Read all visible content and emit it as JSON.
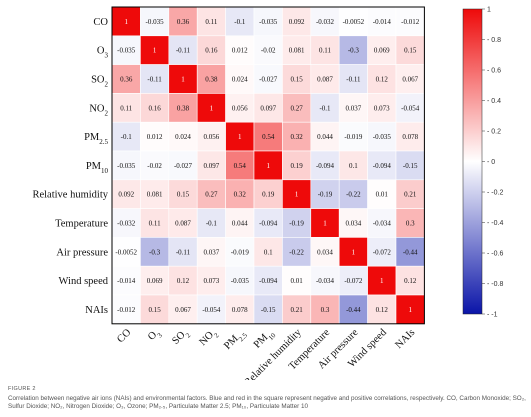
{
  "chart_data": {
    "type": "heatmap",
    "variables": [
      "CO",
      "O3",
      "SO2",
      "NO2",
      "PM2.5",
      "PM10",
      "Relative humidity",
      "Temperature",
      "Air pressure",
      "Wind speed",
      "NAIs"
    ],
    "labels": [
      {
        "base": "CO",
        "sub": ""
      },
      {
        "base": "O",
        "sub": "3"
      },
      {
        "base": "SO",
        "sub": "2"
      },
      {
        "base": "NO",
        "sub": "2"
      },
      {
        "base": "PM",
        "sub": "2.5"
      },
      {
        "base": "PM",
        "sub": "10"
      },
      {
        "base": "Relative humidity",
        "sub": ""
      },
      {
        "base": "Temperature",
        "sub": ""
      },
      {
        "base": "Air pressure",
        "sub": ""
      },
      {
        "base": "Wind speed",
        "sub": ""
      },
      {
        "base": "NAIs",
        "sub": ""
      }
    ],
    "matrix": [
      [
        1,
        -0.035,
        0.36,
        0.11,
        -0.1,
        -0.035,
        0.092,
        -0.032,
        -0.0052,
        -0.014,
        -0.012
      ],
      [
        -0.035,
        1,
        -0.11,
        0.16,
        0.012,
        -0.02,
        0.081,
        0.11,
        -0.3,
        0.069,
        0.15
      ],
      [
        0.36,
        -0.11,
        1,
        0.38,
        0.024,
        -0.027,
        0.15,
        0.087,
        -0.11,
        0.12,
        0.067
      ],
      [
        0.11,
        0.16,
        0.38,
        1,
        0.056,
        0.097,
        0.27,
        -0.1,
        0.037,
        0.073,
        -0.054
      ],
      [
        -0.1,
        0.012,
        0.024,
        0.056,
        1,
        0.54,
        0.32,
        0.044,
        -0.019,
        -0.035,
        0.078
      ],
      [
        -0.035,
        -0.02,
        -0.027,
        0.097,
        0.54,
        1,
        0.19,
        -0.094,
        0.1,
        -0.094,
        -0.15
      ],
      [
        0.092,
        0.081,
        0.15,
        0.27,
        0.32,
        0.19,
        1,
        -0.19,
        -0.22,
        0.01,
        0.21
      ],
      [
        -0.032,
        0.11,
        0.087,
        -0.1,
        0.044,
        -0.094,
        -0.19,
        1,
        0.034,
        -0.034,
        0.3
      ],
      [
        -0.0052,
        -0.3,
        -0.11,
        0.037,
        -0.019,
        0.1,
        -0.22,
        0.034,
        1,
        -0.072,
        -0.44
      ],
      [
        -0.014,
        0.069,
        0.12,
        0.073,
        -0.035,
        -0.094,
        0.01,
        -0.034,
        -0.072,
        1,
        0.12
      ],
      [
        -0.012,
        0.15,
        0.067,
        -0.054,
        0.078,
        -0.15,
        0.21,
        0.3,
        -0.44,
        0.12,
        1
      ]
    ],
    "colorbar": {
      "min": -1,
      "max": 1,
      "ticks": [
        1,
        0.8,
        0.6,
        0.4,
        0.2,
        0,
        -0.2,
        -0.4,
        -0.6,
        -0.8,
        -1
      ],
      "tick_labels": [
        "1",
        "- 0.8",
        "- 0.6",
        "- 0.4",
        "- 0.2",
        "- 0",
        "- -0.2",
        "- -0.4",
        "- -0.6",
        "- -0.8",
        "- -1"
      ],
      "colors": {
        "negative": "#0a14a8",
        "zero": "#ffffff",
        "positive": "#ee0a0a"
      }
    },
    "legend_position": "right",
    "grid": true
  },
  "caption": {
    "label": "FIGURE 2",
    "text": "Correlation between negative air ions (NAIs) and environmental factors. Blue and red in the square represent negative and positive correlations, respectively. CO, Carbon Monoxide; SO₂, Sulfur Dioxide; NO₂, Nitrogen Dioxide; O₃, Ozone; PM₂.₅, Particulate Matter 2.5; PM₁₀, Particulate Matter 10"
  }
}
